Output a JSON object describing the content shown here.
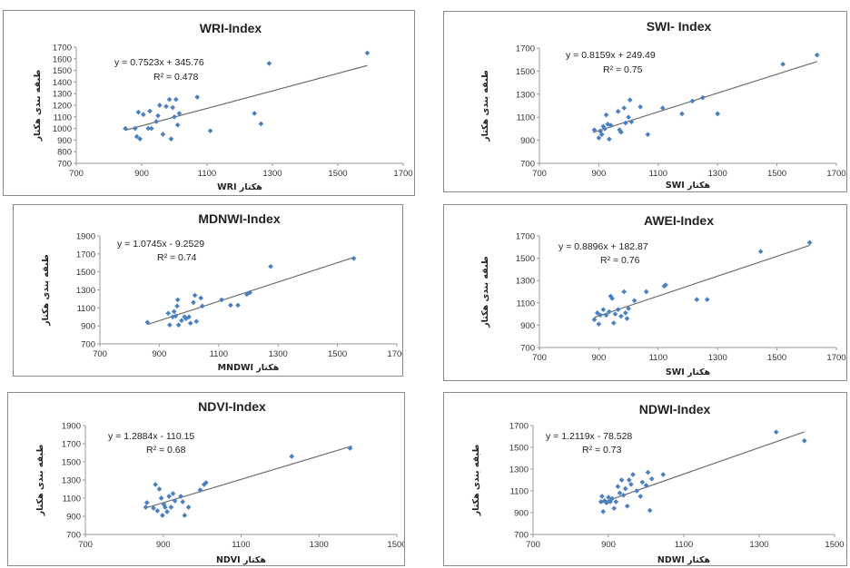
{
  "chart_data": [
    {
      "type": "scatter",
      "title": "WRI-Index",
      "xlabel": "هکتار WRI",
      "ylabel": "طبقه بندی هکتار",
      "xlim": [
        700,
        1700
      ],
      "ylim": [
        700,
        1700
      ],
      "xticks": [
        "700",
        "900",
        "1100",
        "1300",
        "1500",
        "1700"
      ],
      "yticks": [
        "700",
        "800",
        "900",
        "1000",
        "1100",
        "1200",
        "1300",
        "1400",
        "1500",
        "1600",
        "1700"
      ],
      "equation": "y = 0.7523x + 345.76",
      "r2": "R² = 0.478",
      "trend": {
        "slope": 0.7523,
        "intercept": 345.76,
        "x_range": [
          850,
          1590
        ]
      },
      "points": [
        {
          "x": 850,
          "y": 1000
        },
        {
          "x": 880,
          "y": 1000
        },
        {
          "x": 885,
          "y": 930
        },
        {
          "x": 890,
          "y": 1140
        },
        {
          "x": 895,
          "y": 910
        },
        {
          "x": 905,
          "y": 1120
        },
        {
          "x": 920,
          "y": 1000
        },
        {
          "x": 925,
          "y": 1150
        },
        {
          "x": 930,
          "y": 1000
        },
        {
          "x": 945,
          "y": 1060
        },
        {
          "x": 950,
          "y": 1110
        },
        {
          "x": 955,
          "y": 1200
        },
        {
          "x": 965,
          "y": 950
        },
        {
          "x": 975,
          "y": 1190
        },
        {
          "x": 985,
          "y": 1250
        },
        {
          "x": 990,
          "y": 910
        },
        {
          "x": 995,
          "y": 1180
        },
        {
          "x": 1000,
          "y": 1100
        },
        {
          "x": 1005,
          "y": 1250
        },
        {
          "x": 1010,
          "y": 1030
        },
        {
          "x": 1015,
          "y": 1130
        },
        {
          "x": 1070,
          "y": 1270
        },
        {
          "x": 1110,
          "y": 980
        },
        {
          "x": 1245,
          "y": 1130
        },
        {
          "x": 1265,
          "y": 1040
        },
        {
          "x": 1290,
          "y": 1560
        },
        {
          "x": 1590,
          "y": 1650
        }
      ]
    },
    {
      "type": "scatter",
      "title": "SWI- Index",
      "xlabel": "هکتار SWI",
      "ylabel": "طبقه بندی هکتار",
      "xlim": [
        700,
        1700
      ],
      "ylim": [
        700,
        1700
      ],
      "xticks": [
        "700",
        "900",
        "1100",
        "1300",
        "1500",
        "1700"
      ],
      "yticks": [
        "700",
        "900",
        "1100",
        "1300",
        "1500",
        "1700"
      ],
      "equation": "y = 0.8159x + 249.49",
      "r2": "R² = 0.75",
      "trend": {
        "slope": 0.8159,
        "intercept": 249.49,
        "x_range": [
          880,
          1635
        ]
      },
      "points": [
        {
          "x": 885,
          "y": 990
        },
        {
          "x": 900,
          "y": 920
        },
        {
          "x": 905,
          "y": 980
        },
        {
          "x": 910,
          "y": 950
        },
        {
          "x": 915,
          "y": 1020
        },
        {
          "x": 920,
          "y": 1000
        },
        {
          "x": 925,
          "y": 1120
        },
        {
          "x": 930,
          "y": 1040
        },
        {
          "x": 935,
          "y": 910
        },
        {
          "x": 940,
          "y": 1030
        },
        {
          "x": 965,
          "y": 1150
        },
        {
          "x": 970,
          "y": 990
        },
        {
          "x": 975,
          "y": 970
        },
        {
          "x": 985,
          "y": 1180
        },
        {
          "x": 990,
          "y": 1050
        },
        {
          "x": 1000,
          "y": 1100
        },
        {
          "x": 1005,
          "y": 1250
        },
        {
          "x": 1010,
          "y": 1060
        },
        {
          "x": 1040,
          "y": 1190
        },
        {
          "x": 1065,
          "y": 950
        },
        {
          "x": 1115,
          "y": 1180
        },
        {
          "x": 1180,
          "y": 1130
        },
        {
          "x": 1215,
          "y": 1240
        },
        {
          "x": 1250,
          "y": 1270
        },
        {
          "x": 1300,
          "y": 1130
        },
        {
          "x": 1520,
          "y": 1560
        },
        {
          "x": 1635,
          "y": 1640
        }
      ]
    },
    {
      "type": "scatter",
      "title": "MDNWI-Index",
      "xlabel": "هکتار MNDWI",
      "ylabel": "طبقه بندی هکتار",
      "xlim": [
        700,
        1700
      ],
      "ylim": [
        700,
        1900
      ],
      "xticks": [
        "700",
        "900",
        "1100",
        "1300",
        "1500",
        "1700"
      ],
      "yticks": [
        "700",
        "900",
        "1100",
        "1300",
        "1500",
        "1700",
        "1900"
      ],
      "equation": "y = 1.0745x - 9.2529",
      "r2": "R² = 0.74",
      "trend": {
        "slope": 1.0745,
        "intercept": -9.2529,
        "x_range": [
          860,
          1555
        ]
      },
      "points": [
        {
          "x": 860,
          "y": 940
        },
        {
          "x": 930,
          "y": 1040
        },
        {
          "x": 935,
          "y": 910
        },
        {
          "x": 945,
          "y": 1000
        },
        {
          "x": 950,
          "y": 1060
        },
        {
          "x": 955,
          "y": 1010
        },
        {
          "x": 960,
          "y": 1120
        },
        {
          "x": 962,
          "y": 1190
        },
        {
          "x": 965,
          "y": 910
        },
        {
          "x": 975,
          "y": 960
        },
        {
          "x": 985,
          "y": 1000
        },
        {
          "x": 990,
          "y": 980
        },
        {
          "x": 1000,
          "y": 1000
        },
        {
          "x": 1005,
          "y": 930
        },
        {
          "x": 1015,
          "y": 1160
        },
        {
          "x": 1020,
          "y": 1240
        },
        {
          "x": 1025,
          "y": 950
        },
        {
          "x": 1040,
          "y": 1210
        },
        {
          "x": 1045,
          "y": 1120
        },
        {
          "x": 1110,
          "y": 1190
        },
        {
          "x": 1140,
          "y": 1130
        },
        {
          "x": 1165,
          "y": 1130
        },
        {
          "x": 1195,
          "y": 1250
        },
        {
          "x": 1205,
          "y": 1270
        },
        {
          "x": 1275,
          "y": 1560
        },
        {
          "x": 1555,
          "y": 1650
        }
      ]
    },
    {
      "type": "scatter",
      "title": "AWEI-Index",
      "xlabel": "هکتار SWI",
      "ylabel": "طبقه بندی هکتار",
      "xlim": [
        700,
        1700
      ],
      "ylim": [
        700,
        1700
      ],
      "xticks": [
        "700",
        "900",
        "1100",
        "1300",
        "1500",
        "1700"
      ],
      "yticks": [
        "700",
        "900",
        "1100",
        "1300",
        "1500",
        "1700"
      ],
      "equation": "y = 0.8896x + 182.87",
      "r2": "R² = 0.76",
      "trend": {
        "slope": 0.8896,
        "intercept": 182.87,
        "x_range": [
          885,
          1610
        ]
      },
      "points": [
        {
          "x": 885,
          "y": 950
        },
        {
          "x": 895,
          "y": 1010
        },
        {
          "x": 900,
          "y": 910
        },
        {
          "x": 905,
          "y": 990
        },
        {
          "x": 915,
          "y": 1040
        },
        {
          "x": 925,
          "y": 990
        },
        {
          "x": 935,
          "y": 1020
        },
        {
          "x": 940,
          "y": 1160
        },
        {
          "x": 945,
          "y": 1140
        },
        {
          "x": 950,
          "y": 920
        },
        {
          "x": 955,
          "y": 1000
        },
        {
          "x": 965,
          "y": 1040
        },
        {
          "x": 975,
          "y": 980
        },
        {
          "x": 985,
          "y": 1200
        },
        {
          "x": 990,
          "y": 1010
        },
        {
          "x": 995,
          "y": 960
        },
        {
          "x": 1000,
          "y": 1050
        },
        {
          "x": 1020,
          "y": 1120
        },
        {
          "x": 1060,
          "y": 1200
        },
        {
          "x": 1120,
          "y": 1250
        },
        {
          "x": 1125,
          "y": 1260
        },
        {
          "x": 1230,
          "y": 1130
        },
        {
          "x": 1265,
          "y": 1130
        },
        {
          "x": 1445,
          "y": 1560
        },
        {
          "x": 1610,
          "y": 1640
        }
      ]
    },
    {
      "type": "scatter",
      "title": "NDVI-Index",
      "xlabel": "هکتار NDVI",
      "ylabel": "طبقه بندی هکتار",
      "xlim": [
        700,
        1500
      ],
      "ylim": [
        700,
        1900
      ],
      "xticks": [
        "700",
        "900",
        "1100",
        "1300",
        "1500"
      ],
      "yticks": [
        "700",
        "900",
        "1100",
        "1300",
        "1500",
        "1700",
        "1900"
      ],
      "equation": "y = 1.2884x - 110.15",
      "r2": "R² = 0.68",
      "trend": {
        "slope": 1.2884,
        "intercept": -110.15,
        "x_range": [
          855,
          1385
        ]
      },
      "points": [
        {
          "x": 855,
          "y": 1000
        },
        {
          "x": 858,
          "y": 1050
        },
        {
          "x": 875,
          "y": 990
        },
        {
          "x": 880,
          "y": 1250
        },
        {
          "x": 885,
          "y": 960
        },
        {
          "x": 890,
          "y": 1200
        },
        {
          "x": 895,
          "y": 1100
        },
        {
          "x": 898,
          "y": 910
        },
        {
          "x": 902,
          "y": 1030
        },
        {
          "x": 905,
          "y": 1000
        },
        {
          "x": 910,
          "y": 950
        },
        {
          "x": 915,
          "y": 1120
        },
        {
          "x": 920,
          "y": 1000
        },
        {
          "x": 925,
          "y": 1150
        },
        {
          "x": 930,
          "y": 1070
        },
        {
          "x": 945,
          "y": 1120
        },
        {
          "x": 950,
          "y": 1060
        },
        {
          "x": 955,
          "y": 910
        },
        {
          "x": 965,
          "y": 1000
        },
        {
          "x": 995,
          "y": 1190
        },
        {
          "x": 1005,
          "y": 1250
        },
        {
          "x": 1010,
          "y": 1270
        },
        {
          "x": 1230,
          "y": 1560
        },
        {
          "x": 1380,
          "y": 1650
        }
      ]
    },
    {
      "type": "scatter",
      "title": "NDWI-Index",
      "xlabel": "هکتار NDWI",
      "ylabel": "طبقه بندی هکتار",
      "xlim": [
        700,
        1500
      ],
      "ylim": [
        700,
        1700
      ],
      "xticks": [
        "700",
        "900",
        "1100",
        "1300",
        "1500"
      ],
      "yticks": [
        "700",
        "900",
        "1100",
        "1300",
        "1500",
        "1700"
      ],
      "equation": "y = 1.2119x - 78.528",
      "r2": "R² = 0.73",
      "trend": {
        "slope": 1.2119,
        "intercept": -78.528,
        "x_range": [
          880,
          1420
        ]
      },
      "points": [
        {
          "x": 880,
          "y": 1000
        },
        {
          "x": 883,
          "y": 1050
        },
        {
          "x": 886,
          "y": 910
        },
        {
          "x": 890,
          "y": 1010
        },
        {
          "x": 895,
          "y": 990
        },
        {
          "x": 900,
          "y": 1040
        },
        {
          "x": 905,
          "y": 1000
        },
        {
          "x": 910,
          "y": 1030
        },
        {
          "x": 915,
          "y": 940
        },
        {
          "x": 920,
          "y": 1000
        },
        {
          "x": 925,
          "y": 1140
        },
        {
          "x": 930,
          "y": 1080
        },
        {
          "x": 935,
          "y": 1200
        },
        {
          "x": 940,
          "y": 1060
        },
        {
          "x": 945,
          "y": 1120
        },
        {
          "x": 950,
          "y": 960
        },
        {
          "x": 955,
          "y": 1200
        },
        {
          "x": 960,
          "y": 1160
        },
        {
          "x": 965,
          "y": 1250
        },
        {
          "x": 975,
          "y": 1100
        },
        {
          "x": 985,
          "y": 1050
        },
        {
          "x": 990,
          "y": 1180
        },
        {
          "x": 1000,
          "y": 1150
        },
        {
          "x": 1005,
          "y": 1270
        },
        {
          "x": 1010,
          "y": 920
        },
        {
          "x": 1015,
          "y": 1210
        },
        {
          "x": 1045,
          "y": 1250
        },
        {
          "x": 1345,
          "y": 1640
        },
        {
          "x": 1420,
          "y": 1560
        }
      ]
    }
  ],
  "colors": {
    "marker": "#4a7fc1",
    "trendline": "#6e6e6e",
    "frame": "#8a8a8a",
    "text": "#222222"
  }
}
